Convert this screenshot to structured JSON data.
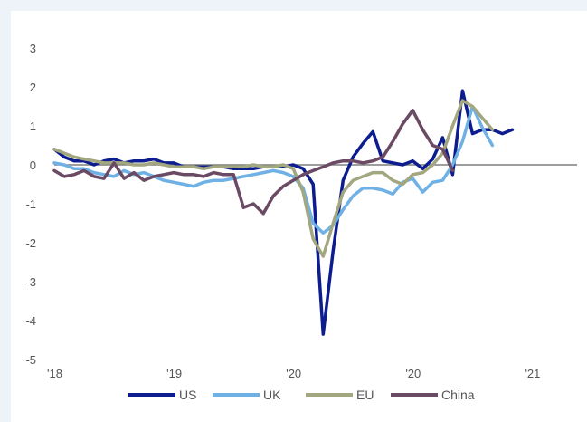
{
  "chart_data": {
    "type": "line",
    "title": "",
    "xlabel": "",
    "ylabel": "",
    "ylim": [
      -5,
      3
    ],
    "yticks": [
      "3",
      "2",
      "1",
      "0",
      "-1",
      "-2",
      "-3",
      "-4",
      "-5"
    ],
    "xticks": [
      {
        "label": "'18",
        "t": 0
      },
      {
        "label": "'19",
        "t": 12
      },
      {
        "label": "'20",
        "t": 24
      },
      {
        "label": "'20",
        "t": 36
      },
      {
        "label": "'21",
        "t": 48
      }
    ],
    "xlim": [
      0,
      52.5
    ],
    "grid": false,
    "zero_line": true,
    "legend_position": "bottom",
    "series": [
      {
        "name": "US",
        "color": "#0d1d8f",
        "values": [
          [
            0,
            0.4
          ],
          [
            1,
            0.2
          ],
          [
            2,
            0.1
          ],
          [
            3,
            0.1
          ],
          [
            4,
            0
          ],
          [
            5,
            0.1
          ],
          [
            6,
            0.15
          ],
          [
            7,
            0.05
          ],
          [
            8,
            0.1
          ],
          [
            9,
            0.1
          ],
          [
            10,
            0.15
          ],
          [
            11,
            0.05
          ],
          [
            12,
            0.05
          ],
          [
            13,
            -0.05
          ],
          [
            14,
            -0.05
          ],
          [
            15,
            -0.05
          ],
          [
            16,
            -0.05
          ],
          [
            17,
            -0.05
          ],
          [
            18,
            -0.1
          ],
          [
            19,
            -0.1
          ],
          [
            20,
            -0.1
          ],
          [
            21,
            -0.05
          ],
          [
            22,
            -0.05
          ],
          [
            23,
            -0.05
          ],
          [
            24,
            0
          ],
          [
            25,
            -0.1
          ],
          [
            26,
            -0.5
          ],
          [
            27,
            -4.35
          ],
          [
            28,
            -2.2
          ],
          [
            29,
            -0.4
          ],
          [
            30,
            0.2
          ],
          [
            31,
            0.55
          ],
          [
            32,
            0.85
          ],
          [
            33,
            0.1
          ],
          [
            34,
            0.05
          ],
          [
            35,
            0
          ],
          [
            36,
            0.1
          ],
          [
            37,
            -0.1
          ],
          [
            38,
            0.15
          ],
          [
            39,
            0.7
          ],
          [
            40,
            -0.25
          ],
          [
            41,
            1.9
          ],
          [
            42,
            0.8
          ],
          [
            43,
            0.9
          ],
          [
            44,
            0.9
          ],
          [
            45,
            0.8
          ],
          [
            46,
            0.9
          ]
        ]
      },
      {
        "name": "UK",
        "color": "#6fb1e4",
        "values": [
          [
            0,
            0.05
          ],
          [
            1,
            0
          ],
          [
            2,
            -0.1
          ],
          [
            3,
            -0.1
          ],
          [
            4,
            -0.2
          ],
          [
            5,
            -0.25
          ],
          [
            6,
            -0.3
          ],
          [
            7,
            -0.15
          ],
          [
            8,
            -0.25
          ],
          [
            9,
            -0.2
          ],
          [
            10,
            -0.3
          ],
          [
            11,
            -0.4
          ],
          [
            12,
            -0.45
          ],
          [
            13,
            -0.5
          ],
          [
            14,
            -0.55
          ],
          [
            15,
            -0.45
          ],
          [
            16,
            -0.4
          ],
          [
            17,
            -0.4
          ],
          [
            18,
            -0.35
          ],
          [
            19,
            -0.3
          ],
          [
            20,
            -0.25
          ],
          [
            21,
            -0.2
          ],
          [
            22,
            -0.15
          ],
          [
            23,
            -0.2
          ],
          [
            24,
            -0.3
          ],
          [
            25,
            -0.6
          ],
          [
            26,
            -1.5
          ],
          [
            27,
            -1.75
          ],
          [
            28,
            -1.55
          ],
          [
            29,
            -1.15
          ],
          [
            30,
            -0.8
          ],
          [
            31,
            -0.6
          ],
          [
            32,
            -0.6
          ],
          [
            33,
            -0.65
          ],
          [
            34,
            -0.75
          ],
          [
            35,
            -0.45
          ],
          [
            36,
            -0.35
          ],
          [
            37,
            -0.7
          ],
          [
            38,
            -0.45
          ],
          [
            39,
            -0.4
          ],
          [
            40,
            0
          ],
          [
            41,
            0.6
          ],
          [
            42,
            1.5
          ],
          [
            43,
            0.95
          ],
          [
            44,
            0.5
          ]
        ]
      },
      {
        "name": "EU",
        "color": "#a2a77f",
        "values": [
          [
            0,
            0.4
          ],
          [
            1,
            0.3
          ],
          [
            2,
            0.2
          ],
          [
            3,
            0.15
          ],
          [
            4,
            0.1
          ],
          [
            5,
            0.05
          ],
          [
            6,
            0.05
          ],
          [
            7,
            0.05
          ],
          [
            8,
            0
          ],
          [
            9,
            0
          ],
          [
            10,
            0.05
          ],
          [
            11,
            0
          ],
          [
            12,
            -0.05
          ],
          [
            13,
            -0.05
          ],
          [
            14,
            -0.05
          ],
          [
            15,
            -0.1
          ],
          [
            16,
            -0.05
          ],
          [
            17,
            -0.05
          ],
          [
            18,
            -0.05
          ],
          [
            19,
            -0.05
          ],
          [
            20,
            0
          ],
          [
            21,
            -0.05
          ],
          [
            22,
            -0.05
          ],
          [
            23,
            0
          ],
          [
            24,
            -0.1
          ],
          [
            25,
            -0.7
          ],
          [
            26,
            -1.9
          ],
          [
            27,
            -2.35
          ],
          [
            28,
            -1.5
          ],
          [
            29,
            -0.7
          ],
          [
            30,
            -0.4
          ],
          [
            31,
            -0.3
          ],
          [
            32,
            -0.2
          ],
          [
            33,
            -0.2
          ],
          [
            34,
            -0.4
          ],
          [
            35,
            -0.5
          ],
          [
            36,
            -0.25
          ],
          [
            37,
            -0.2
          ],
          [
            38,
            0
          ],
          [
            39,
            0.3
          ],
          [
            40,
            1
          ],
          [
            41,
            1.65
          ],
          [
            42,
            1.5
          ],
          [
            43,
            1.2
          ],
          [
            44,
            0.9
          ]
        ]
      },
      {
        "name": "China",
        "color": "#6b4a63",
        "values": [
          [
            0,
            -0.15
          ],
          [
            1,
            -0.3
          ],
          [
            2,
            -0.25
          ],
          [
            3,
            -0.15
          ],
          [
            4,
            -0.3
          ],
          [
            5,
            -0.35
          ],
          [
            6,
            0.05
          ],
          [
            7,
            -0.35
          ],
          [
            8,
            -0.2
          ],
          [
            9,
            -0.4
          ],
          [
            10,
            -0.3
          ],
          [
            11,
            -0.25
          ],
          [
            12,
            -0.2
          ],
          [
            13,
            -0.25
          ],
          [
            14,
            -0.25
          ],
          [
            15,
            -0.3
          ],
          [
            16,
            -0.2
          ],
          [
            17,
            -0.25
          ],
          [
            18,
            -0.25
          ],
          [
            19,
            -1.1
          ],
          [
            20,
            -1
          ],
          [
            21,
            -1.25
          ],
          [
            22,
            -0.8
          ],
          [
            23,
            -0.55
          ],
          [
            24,
            -0.4
          ],
          [
            25,
            -0.25
          ],
          [
            26,
            -0.15
          ],
          [
            27,
            -0.05
          ],
          [
            28,
            0.05
          ],
          [
            29,
            0.1
          ],
          [
            30,
            0.1
          ],
          [
            31,
            0.05
          ],
          [
            32,
            0.1
          ],
          [
            33,
            0.2
          ],
          [
            34,
            0.6
          ],
          [
            35,
            1.05
          ],
          [
            36,
            1.4
          ],
          [
            37,
            0.9
          ],
          [
            38,
            0.5
          ],
          [
            39,
            0.4
          ],
          [
            40,
            -0.15
          ]
        ]
      }
    ]
  }
}
